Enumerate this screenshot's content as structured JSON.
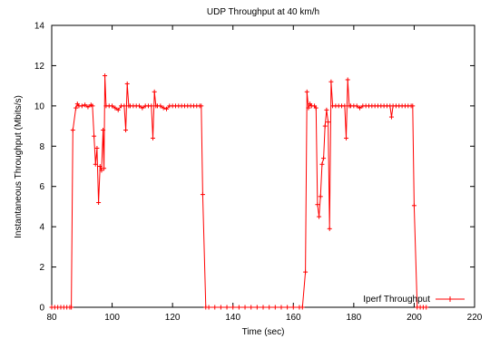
{
  "chart_data": {
    "type": "line",
    "title": "UDP Throughput at 40 km/h",
    "xlabel": "Time (sec)",
    "ylabel": "Instantaneous Throughput (Mbits/s)",
    "xlim": [
      80,
      220
    ],
    "ylim": [
      0,
      14
    ],
    "xticks": [
      80,
      100,
      120,
      140,
      160,
      180,
      200,
      220
    ],
    "yticks": [
      0,
      2,
      4,
      6,
      8,
      10,
      12,
      14
    ],
    "grid": false,
    "legend_position": "bottom-right",
    "series": [
      {
        "name": "Iperf Throughput",
        "color": "#ff0000",
        "marker": "plus",
        "points": [
          [
            80,
            0
          ],
          [
            81,
            0
          ],
          [
            82,
            0
          ],
          [
            83,
            0
          ],
          [
            84,
            0
          ],
          [
            85,
            0
          ],
          [
            86,
            0
          ],
          [
            86.5,
            0
          ],
          [
            87,
            8.8
          ],
          [
            88,
            9.9
          ],
          [
            88.5,
            10.1
          ],
          [
            89,
            10
          ],
          [
            90,
            10
          ],
          [
            91,
            10.05
          ],
          [
            92,
            9.95
          ],
          [
            93,
            10.05
          ],
          [
            93.5,
            10
          ],
          [
            94,
            8.5
          ],
          [
            94.5,
            7.1
          ],
          [
            95,
            7.9
          ],
          [
            95.5,
            5.2
          ],
          [
            96,
            7
          ],
          [
            96.5,
            6.8
          ],
          [
            97,
            8.8
          ],
          [
            97.3,
            6.9
          ],
          [
            97.6,
            11.5
          ],
          [
            98,
            10
          ],
          [
            99,
            10
          ],
          [
            100,
            10
          ],
          [
            101,
            9.9
          ],
          [
            102,
            9.8
          ],
          [
            103,
            10
          ],
          [
            104,
            10
          ],
          [
            104.5,
            8.8
          ],
          [
            105,
            11.1
          ],
          [
            105.5,
            10
          ],
          [
            106,
            10
          ],
          [
            107,
            10
          ],
          [
            108,
            10
          ],
          [
            109,
            10
          ],
          [
            110,
            9.9
          ],
          [
            111,
            10
          ],
          [
            112,
            10
          ],
          [
            113,
            10
          ],
          [
            113.5,
            8.4
          ],
          [
            114,
            10.7
          ],
          [
            114.5,
            10
          ],
          [
            115,
            10
          ],
          [
            116,
            10
          ],
          [
            117,
            9.9
          ],
          [
            118,
            9.85
          ],
          [
            119,
            10
          ],
          [
            120,
            10
          ],
          [
            121,
            10
          ],
          [
            122,
            10
          ],
          [
            123,
            10
          ],
          [
            124,
            10
          ],
          [
            125,
            10
          ],
          [
            126,
            10
          ],
          [
            127,
            10
          ],
          [
            128,
            10
          ],
          [
            129,
            10
          ],
          [
            129.5,
            10
          ],
          [
            130,
            5.6
          ],
          [
            131,
            0
          ],
          [
            132,
            0
          ],
          [
            134,
            0
          ],
          [
            136,
            0
          ],
          [
            138,
            0
          ],
          [
            140,
            0
          ],
          [
            142,
            0
          ],
          [
            144,
            0
          ],
          [
            146,
            0
          ],
          [
            148,
            0
          ],
          [
            150,
            0
          ],
          [
            152,
            0
          ],
          [
            154,
            0
          ],
          [
            156,
            0
          ],
          [
            158,
            0
          ],
          [
            160,
            0
          ],
          [
            162,
            0
          ],
          [
            163,
            0
          ],
          [
            164,
            1.75
          ],
          [
            164.5,
            10.7
          ],
          [
            165,
            9.9
          ],
          [
            165.5,
            10.1
          ],
          [
            166,
            10
          ],
          [
            167,
            10
          ],
          [
            167.5,
            9.9
          ],
          [
            168,
            5.1
          ],
          [
            168.5,
            4.5
          ],
          [
            169,
            5.5
          ],
          [
            169.5,
            7.1
          ],
          [
            170,
            7.4
          ],
          [
            170.5,
            9
          ],
          [
            171,
            9.8
          ],
          [
            171.5,
            9.2
          ],
          [
            172,
            3.9
          ],
          [
            172.5,
            11.2
          ],
          [
            173,
            10
          ],
          [
            174,
            10
          ],
          [
            175,
            10
          ],
          [
            176,
            10
          ],
          [
            177,
            10
          ],
          [
            177.5,
            8.4
          ],
          [
            178,
            11.3
          ],
          [
            178.5,
            10
          ],
          [
            179,
            10
          ],
          [
            180,
            10
          ],
          [
            181,
            10
          ],
          [
            182,
            9.9
          ],
          [
            183,
            10
          ],
          [
            184,
            10
          ],
          [
            185,
            10
          ],
          [
            186,
            10
          ],
          [
            187,
            10
          ],
          [
            188,
            10
          ],
          [
            189,
            10
          ],
          [
            190,
            10
          ],
          [
            191,
            10
          ],
          [
            192,
            10
          ],
          [
            192.5,
            9.45
          ],
          [
            193,
            10
          ],
          [
            194,
            10
          ],
          [
            195,
            10
          ],
          [
            196,
            10
          ],
          [
            197,
            10
          ],
          [
            198,
            10
          ],
          [
            199,
            10
          ],
          [
            199.5,
            10
          ],
          [
            200,
            5.05
          ],
          [
            201,
            0
          ],
          [
            202,
            0
          ],
          [
            203,
            0
          ],
          [
            204,
            0
          ]
        ]
      }
    ]
  }
}
